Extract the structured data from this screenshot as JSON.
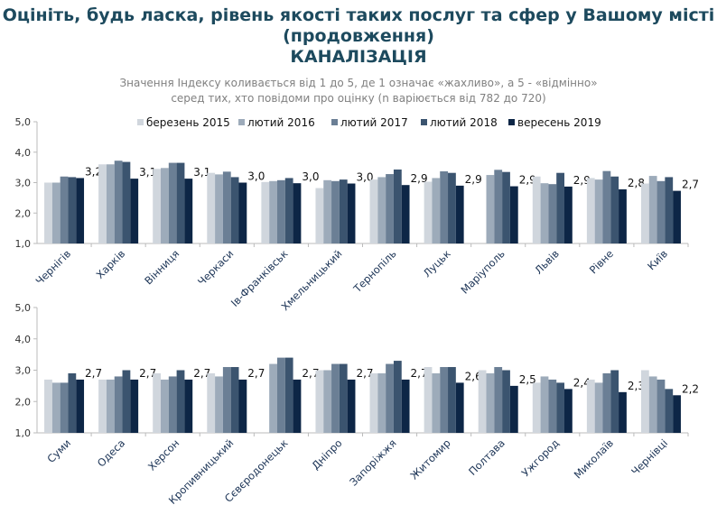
{
  "header": {
    "title_line1": "Оцініть, будь ласка, рівень якості таких послуг та сфер у Вашому місті",
    "title_line2": "(продовження)",
    "title_line3": "КАНАЛІЗАЦІЯ",
    "subtitle_line1": "Значення Індексу коливається від 1 до 5, де 1 означає «жахливо», а 5 - «відмінно»",
    "subtitle_line2": "серед тих, хто повідоми про оцінку (n варіюється від 782 до 720)"
  },
  "colors": [
    "#d0d6dd",
    "#9dabba",
    "#6b7f95",
    "#3b546f",
    "#0d2646"
  ],
  "chart_data": [
    {
      "type": "bar",
      "ylim": [
        1,
        5
      ],
      "yticks": [
        "1,0",
        "2,0",
        "3,0",
        "4,0",
        "5,0"
      ],
      "legend_position": "top",
      "categories": [
        "Чернігів",
        "Харків",
        "Вінниця",
        "Черкаси",
        "Ів-Франківськ",
        "Хмельницький",
        "Тернопіль",
        "Луцьк",
        "Маріуполь",
        "Львів",
        "Рівне",
        "Київ"
      ],
      "series": [
        {
          "name": "березень 2015",
          "values": [
            3.0,
            3.6,
            3.45,
            3.32,
            3.02,
            2.82,
            3.1,
            3.03,
            null,
            3.2,
            3.15,
            2.97
          ]
        },
        {
          "name": "лютий 2016",
          "values": [
            3.0,
            3.6,
            3.48,
            3.27,
            3.05,
            3.08,
            3.18,
            3.15,
            3.25,
            2.98,
            3.1,
            3.22
          ]
        },
        {
          "name": "лютий 2017",
          "values": [
            3.2,
            3.72,
            3.65,
            3.36,
            3.08,
            3.05,
            3.28,
            3.37,
            3.42,
            2.95,
            3.38,
            3.05
          ]
        },
        {
          "name": "лютий 2018",
          "values": [
            3.18,
            3.68,
            3.65,
            3.18,
            3.15,
            3.1,
            3.43,
            3.32,
            3.35,
            3.32,
            3.2,
            3.18
          ]
        },
        {
          "name": "вересень 2019",
          "values": [
            3.15,
            3.13,
            3.13,
            3.0,
            2.98,
            2.97,
            2.92,
            2.9,
            2.88,
            2.87,
            2.78,
            2.73
          ]
        }
      ],
      "data_labels": [
        "3,2",
        "3,1",
        "3,1",
        "3,0",
        "3,0",
        "3,0",
        "2,9",
        "2,9",
        "2,9",
        "2,9",
        "2,8",
        "2,7"
      ]
    },
    {
      "type": "bar",
      "ylim": [
        1,
        5
      ],
      "yticks": [
        "1,0",
        "2,0",
        "3,0",
        "4,0",
        "5,0"
      ],
      "categories": [
        "Суми",
        "Одеса",
        "Херсон",
        "Кропивницький",
        "Сєвєродонецьк",
        "Дніпро",
        "Запоріжжя",
        "Житомир",
        "Полтава",
        "Ужгород",
        "Миколаїв",
        "Чернівці"
      ],
      "series": [
        {
          "name": "березень 2015",
          "values": [
            2.7,
            2.7,
            2.9,
            2.9,
            null,
            3.0,
            2.9,
            3.1,
            3.0,
            2.6,
            2.7,
            3.0
          ]
        },
        {
          "name": "лютий 2016",
          "values": [
            2.6,
            2.7,
            2.7,
            2.8,
            3.2,
            3.0,
            2.9,
            2.9,
            2.9,
            2.8,
            2.6,
            2.8
          ]
        },
        {
          "name": "лютий 2017",
          "values": [
            2.6,
            2.8,
            2.8,
            3.1,
            3.4,
            3.2,
            3.2,
            3.1,
            3.1,
            2.7,
            2.9,
            2.7
          ]
        },
        {
          "name": "лютий 2018",
          "values": [
            2.9,
            3.0,
            3.0,
            3.1,
            3.4,
            3.2,
            3.3,
            3.1,
            3.0,
            2.6,
            3.0,
            2.4
          ]
        },
        {
          "name": "вересень 2019",
          "values": [
            2.7,
            2.7,
            2.7,
            2.7,
            2.7,
            2.7,
            2.7,
            2.6,
            2.5,
            2.4,
            2.3,
            2.2
          ]
        }
      ],
      "data_labels": [
        "2,7",
        "2,7",
        "2,7",
        "2,7",
        "2,7",
        "2,7",
        "2,7",
        "2,6",
        "2,5",
        "2,4",
        "2,3",
        "2,2"
      ]
    }
  ]
}
